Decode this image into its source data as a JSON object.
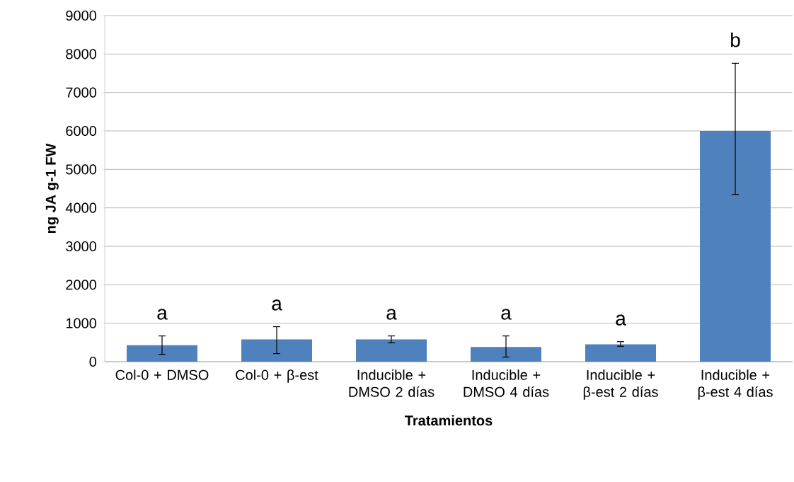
{
  "chart_data": {
    "type": "bar",
    "ylabel": "ng JA g-1 FW",
    "xlabel": "Tratamientos",
    "categories": [
      "Col-0 + DMSO",
      "Col-0 + β-est",
      "Inducible + DMSO 2 días",
      "Inducible + DMSO 4 días",
      "Inducible + β-est 2 días",
      "Inducible + β-est 4 días"
    ],
    "values": [
      430,
      580,
      580,
      380,
      450,
      6000
    ],
    "errors": [
      [
        190,
        670
      ],
      [
        210,
        910
      ],
      [
        490,
        670
      ],
      [
        120,
        670
      ],
      [
        400,
        520
      ],
      [
        4350,
        7760
      ]
    ],
    "color": "#4f81bd",
    "ylim": [
      0,
      9000
    ],
    "yticks": [
      0,
      1000,
      2000,
      3000,
      4000,
      5000,
      6000,
      7000,
      8000,
      9000
    ],
    "grid": "y",
    "annotations": [
      "a",
      "a",
      "a",
      "a",
      "a",
      "b"
    ]
  }
}
